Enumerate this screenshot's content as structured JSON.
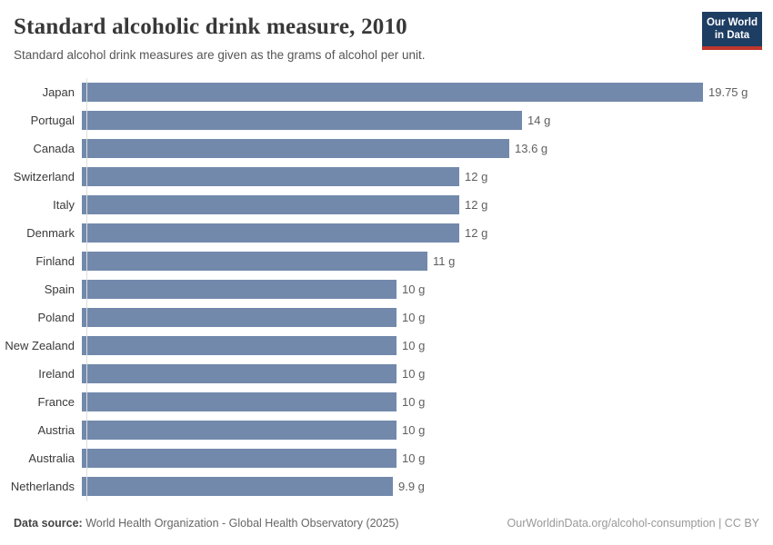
{
  "header": {
    "title": "Standard alcoholic drink measure, 2010",
    "subtitle": "Standard alcohol drink measures are given as the grams of alcohol per unit.",
    "logo": {
      "line1": "Our World",
      "line2": "in Data"
    }
  },
  "chart_data": {
    "type": "bar",
    "orientation": "horizontal",
    "title": "Standard alcoholic drink measure, 2010",
    "xlabel": "",
    "ylabel": "",
    "unit": "g",
    "xlim": [
      0,
      20
    ],
    "grid": false,
    "legend": "none",
    "categories": [
      "Japan",
      "Portugal",
      "Canada",
      "Switzerland",
      "Italy",
      "Denmark",
      "Finland",
      "Spain",
      "Poland",
      "New Zealand",
      "Ireland",
      "France",
      "Austria",
      "Australia",
      "Netherlands"
    ],
    "values": [
      19.75,
      14,
      13.6,
      12,
      12,
      12,
      11,
      10,
      10,
      10,
      10,
      10,
      10,
      10,
      9.9
    ],
    "value_labels": [
      "19.75 g",
      "14 g",
      "13.6 g",
      "12 g",
      "12 g",
      "12 g",
      "11 g",
      "10 g",
      "10 g",
      "10 g",
      "10 g",
      "10 g",
      "10 g",
      "10 g",
      "9.9 g"
    ]
  },
  "footer": {
    "datasource_label": "Data source:",
    "datasource_text": " World Health Organization - Global Health Observatory (2025)",
    "url_text": "OurWorldinData.org/alcohol-consumption | CC BY"
  },
  "colors": {
    "bar": "#7289ac",
    "title": "#383838",
    "subtitle": "#555555",
    "axis": "#dedede",
    "logo_bg": "#1d3d63",
    "logo_accent": "#c0362c"
  }
}
